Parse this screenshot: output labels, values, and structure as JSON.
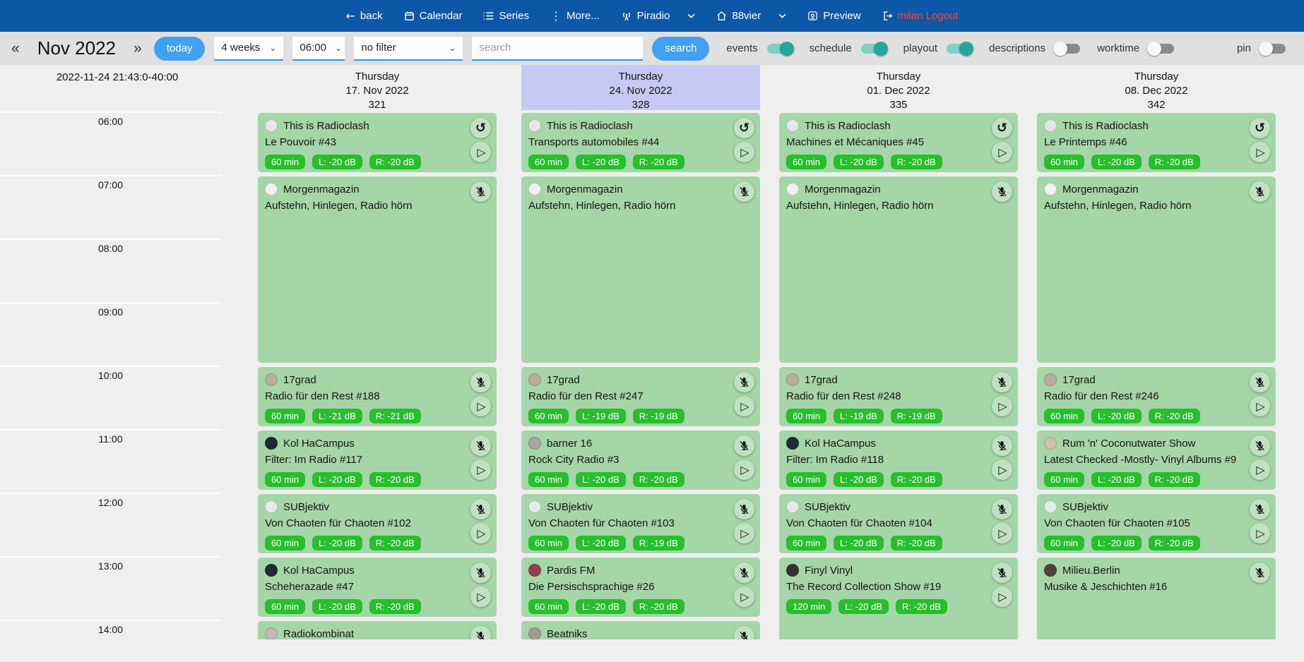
{
  "colors": {
    "navbar_bg": "#0c57a6",
    "logout_red": "#f4483a",
    "accent_blue": "#42a0f0",
    "select_underline": "#2196f3",
    "toggle_on": "#26a69a",
    "toggle_on_track": "#7ed0c8",
    "toggle_off_track": "#8b8b8b",
    "day_highlight": "#c8c8f5",
    "event_green": "#a5d6a7",
    "badge_green": "#28be2d",
    "toolbar_bg": "#e0e0e0",
    "page_bg": "#efefef"
  },
  "icon_glyphs": {
    "replay": "↺",
    "play": "▷",
    "back_arrow": "←",
    "more_kebab": "⋮",
    "chevron": "⌄"
  },
  "navbar": {
    "back": "back",
    "calendar": "Calendar",
    "series": "Series",
    "more": "More...",
    "piradio": "Piradio",
    "station": "88vier",
    "preview": "Preview",
    "logout": "milan Logout"
  },
  "toolbar": {
    "prev_symbol": "«",
    "next_symbol": "»",
    "month_label": "Nov 2022",
    "today_label": "today",
    "range_value": "4 weeks",
    "start_time_value": "06:00",
    "filter_value": "no filter",
    "search_placeholder": "search",
    "search_label": "search",
    "toggles": {
      "events": {
        "label": "events",
        "on": true
      },
      "schedule": {
        "label": "schedule",
        "on": true
      },
      "playout": {
        "label": "playout",
        "on": true
      },
      "descriptions": {
        "label": "descriptions",
        "on": false
      },
      "worktime": {
        "label": "worktime",
        "on": false
      },
      "pin": {
        "label": "pin",
        "on": false
      }
    }
  },
  "calendar": {
    "now_label": "2022-11-24 21:43:0-40:00",
    "hours": [
      "06:00",
      "07:00",
      "08:00",
      "09:00",
      "10:00",
      "11:00",
      "12:00",
      "13:00",
      "14:00"
    ],
    "days": [
      {
        "weekday": "Thursday",
        "date": "17. Nov 2022",
        "day_number": "321",
        "highlighted": false,
        "events": [
          {
            "show": "This is Radioclash",
            "episode": "Le Pouvoir #43",
            "start": "06:00",
            "duration_min": 60,
            "badges": [
              "60 min",
              "L: -20 dB",
              "R: -20 dB"
            ],
            "corner_icons": [
              "replay",
              "play"
            ],
            "avatar_color": "#e6e6e4"
          },
          {
            "show": "Morgenmagazin",
            "episode": "Aufstehn, Hinlegen, Radio hörn",
            "start": "07:00",
            "duration_min": 180,
            "badges": [],
            "corner_icons": [
              "mic-muted"
            ],
            "avatar_color": "#f1f1ef"
          },
          {
            "show": "17grad",
            "episode": "Radio für den Rest #188",
            "start": "10:00",
            "duration_min": 60,
            "badges": [
              "60 min",
              "L: -21 dB",
              "R: -21 dB"
            ],
            "corner_icons": [
              "mic-muted",
              "play"
            ],
            "avatar_color": "#b9ae9e"
          },
          {
            "show": "Kol HaCampus",
            "episode": "Filter: Im Radio #117",
            "start": "11:00",
            "duration_min": 60,
            "badges": [
              "60 min",
              "L: -20 dB",
              "R: -20 dB"
            ],
            "corner_icons": [
              "mic-muted",
              "play"
            ],
            "avatar_color": "#1f2a38"
          },
          {
            "show": "SUBjektiv",
            "episode": "Von Chaoten für Chaoten #102",
            "start": "12:00",
            "duration_min": 60,
            "badges": [
              "60 min",
              "L: -20 dB",
              "R: -20 dB"
            ],
            "corner_icons": [
              "mic-muted",
              "play"
            ],
            "avatar_color": "#e4ece7"
          },
          {
            "show": "Kol HaCampus",
            "episode": "Scheherazade #47",
            "start": "13:00",
            "duration_min": 60,
            "badges": [
              "60 min",
              "L: -20 dB",
              "R: -20 dB"
            ],
            "corner_icons": [
              "mic-muted",
              "play"
            ],
            "avatar_color": "#1f2a38"
          },
          {
            "show": "Radiokombinat",
            "episode": "",
            "start": "14:00",
            "duration_min": 60,
            "badges": [],
            "corner_icons": [
              "mic-muted"
            ],
            "avatar_color": "#c7b6b2"
          }
        ]
      },
      {
        "weekday": "Thursday",
        "date": "24. Nov 2022",
        "day_number": "328",
        "highlighted": true,
        "events": [
          {
            "show": "This is Radioclash",
            "episode": "Transports automobiles #44",
            "start": "06:00",
            "duration_min": 60,
            "badges": [
              "60 min",
              "L: -20 dB",
              "R: -20 dB"
            ],
            "corner_icons": [
              "replay",
              "play"
            ],
            "avatar_color": "#e6e6e4"
          },
          {
            "show": "Morgenmagazin",
            "episode": "Aufstehn, Hinlegen, Radio hörn",
            "start": "07:00",
            "duration_min": 180,
            "badges": [],
            "corner_icons": [
              "mic-muted"
            ],
            "avatar_color": "#f1f1ef"
          },
          {
            "show": "17grad",
            "episode": "Radio für den Rest #247",
            "start": "10:00",
            "duration_min": 60,
            "badges": [
              "60 min",
              "L: -19 dB",
              "R: -19 dB"
            ],
            "corner_icons": [
              "mic-muted",
              "play"
            ],
            "avatar_color": "#b9ae9e"
          },
          {
            "show": "barner 16",
            "episode": "Rock City Radio #3",
            "start": "11:00",
            "duration_min": 60,
            "badges": [
              "60 min",
              "L: -20 dB",
              "R: -20 dB"
            ],
            "corner_icons": [
              "mic-muted",
              "play"
            ],
            "avatar_color": "#a7a7a3"
          },
          {
            "show": "SUBjektiv",
            "episode": "Von Chaoten für Chaoten #103",
            "start": "12:00",
            "duration_min": 60,
            "badges": [
              "60 min",
              "L: -20 dB",
              "R: -19 dB"
            ],
            "corner_icons": [
              "mic-muted",
              "play"
            ],
            "avatar_color": "#e4ece7"
          },
          {
            "show": "Pardis FM",
            "episode": "Die Persischsprachige #26",
            "start": "13:00",
            "duration_min": 60,
            "badges": [
              "60 min",
              "L: -20 dB",
              "R: -20 dB"
            ],
            "corner_icons": [
              "mic-muted",
              "play"
            ],
            "avatar_color": "#93404a"
          },
          {
            "show": "Beatniks",
            "episode": "",
            "start": "14:00",
            "duration_min": 60,
            "badges": [],
            "corner_icons": [
              "mic-muted"
            ],
            "avatar_color": "#a39b90"
          }
        ]
      },
      {
        "weekday": "Thursday",
        "date": "01. Dec 2022",
        "day_number": "335",
        "highlighted": false,
        "events": [
          {
            "show": "This is Radioclash",
            "episode": "Machines et Mécaniques #45",
            "start": "06:00",
            "duration_min": 60,
            "badges": [
              "60 min",
              "L: -20 dB",
              "R: -20 dB"
            ],
            "corner_icons": [
              "replay",
              "play"
            ],
            "avatar_color": "#e6e6e4"
          },
          {
            "show": "Morgenmagazin",
            "episode": "Aufstehn, Hinlegen, Radio hörn",
            "start": "07:00",
            "duration_min": 180,
            "badges": [],
            "corner_icons": [
              "mic-muted"
            ],
            "avatar_color": "#f1f1ef"
          },
          {
            "show": "17grad",
            "episode": "Radio für den Rest #248",
            "start": "10:00",
            "duration_min": 60,
            "badges": [
              "60 min",
              "L: -19 dB",
              "R: -19 dB"
            ],
            "corner_icons": [
              "mic-muted",
              "play"
            ],
            "avatar_color": "#b9ae9e"
          },
          {
            "show": "Kol HaCampus",
            "episode": "Filter: Im Radio #118",
            "start": "11:00",
            "duration_min": 60,
            "badges": [
              "60 min",
              "L: -20 dB",
              "R: -20 dB"
            ],
            "corner_icons": [
              "mic-muted",
              "play"
            ],
            "avatar_color": "#1f2a38"
          },
          {
            "show": "SUBjektiv",
            "episode": "Von Chaoten für Chaoten #104",
            "start": "12:00",
            "duration_min": 60,
            "badges": [
              "60 min",
              "L: -20 dB",
              "R: -20 dB"
            ],
            "corner_icons": [
              "mic-muted",
              "play"
            ],
            "avatar_color": "#e4ece7"
          },
          {
            "show": "Finyl Vinyl",
            "episode": "The Record Collection Show #19",
            "start": "13:00",
            "duration_min": 120,
            "badges": [
              "120 min",
              "L: -20 dB",
              "R: -20 dB"
            ],
            "corner_icons": [
              "mic-muted",
              "play"
            ],
            "avatar_color": "#35332f"
          }
        ]
      },
      {
        "weekday": "Thursday",
        "date": "08. Dec 2022",
        "day_number": "342",
        "highlighted": false,
        "events": [
          {
            "show": "This is Radioclash",
            "episode": "Le Printemps #46",
            "start": "06:00",
            "duration_min": 60,
            "badges": [
              "60 min",
              "L: -20 dB",
              "R: -20 dB"
            ],
            "corner_icons": [
              "replay",
              "play"
            ],
            "avatar_color": "#e6e6e4"
          },
          {
            "show": "Morgenmagazin",
            "episode": "Aufstehn, Hinlegen, Radio hörn",
            "start": "07:00",
            "duration_min": 180,
            "badges": [],
            "corner_icons": [
              "mic-muted"
            ],
            "avatar_color": "#f1f1ef"
          },
          {
            "show": "17grad",
            "episode": "Radio für den Rest #246",
            "start": "10:00",
            "duration_min": 60,
            "badges": [
              "60 min",
              "L: -20 dB",
              "R: -20 dB"
            ],
            "corner_icons": [
              "mic-muted",
              "play"
            ],
            "avatar_color": "#b9ae9e"
          },
          {
            "show": "Rum 'n' Coconutwater Show",
            "episode": "Latest Checked -Mostly- Vinyl Albums #9",
            "start": "11:00",
            "duration_min": 60,
            "badges": [
              "60 min",
              "L: -20 dB",
              "R: -20 dB"
            ],
            "corner_icons": [
              "mic-muted",
              "play"
            ],
            "avatar_color": "#cec2a4"
          },
          {
            "show": "SUBjektiv",
            "episode": "Von Chaoten für Chaoten #105",
            "start": "12:00",
            "duration_min": 60,
            "badges": [
              "60 min",
              "L: -20 dB",
              "R: -20 dB"
            ],
            "corner_icons": [
              "mic-muted",
              "play"
            ],
            "avatar_color": "#e4ece7"
          },
          {
            "show": "Milieu.Berlin",
            "episode": "Musike & Jeschichten #16",
            "start": "13:00",
            "duration_min": 120,
            "badges": [],
            "corner_icons": [
              "mic-muted"
            ],
            "avatar_color": "#4e4038"
          }
        ]
      }
    ]
  }
}
